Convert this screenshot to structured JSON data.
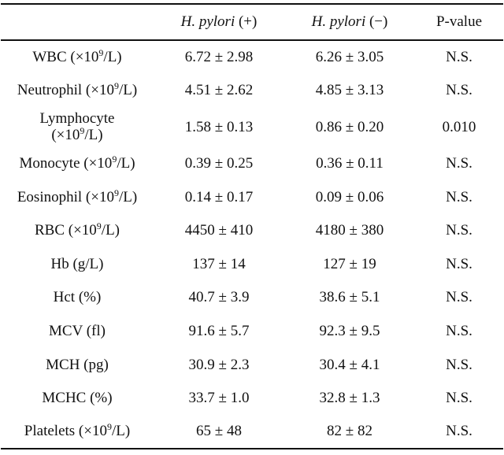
{
  "header": {
    "param": "",
    "pos_italic": "H. pylori",
    "pos_suffix": " (+)",
    "neg_italic": "H. pylori",
    "neg_suffix": " (−)",
    "pvalue": "P-value"
  },
  "rows": [
    {
      "label_pre": "WBC (×10",
      "sup": "9",
      "label_post": "/L)",
      "pos": "6.72 ± 2.98",
      "neg": "6.26 ± 3.05",
      "p": "N.S."
    },
    {
      "label_pre": "Neutrophil (×10",
      "sup": "9",
      "label_post": "/L)",
      "pos": "4.51 ± 2.62",
      "neg": "4.85 ± 3.13",
      "p": "N.S."
    },
    {
      "label_line1": "Lymphocyte",
      "label_pre": "(×10",
      "sup": "9",
      "label_post": "/L)",
      "pos": "1.58 ± 0.13",
      "neg": "0.86 ± 0.20",
      "p": "0.010"
    },
    {
      "label_pre": "Monocyte (×10",
      "sup": "9",
      "label_post": "/L)",
      "pos": "0.39 ± 0.25",
      "neg": "0.36 ± 0.11",
      "p": "N.S."
    },
    {
      "label_pre": "Eosinophil (×10",
      "sup": "9",
      "label_post": "/L)",
      "pos": "0.14 ± 0.17",
      "neg": "0.09 ± 0.06",
      "p": "N.S."
    },
    {
      "label_pre": "RBC (×10",
      "sup": "9",
      "label_post": "/L)",
      "pos": "4450 ± 410",
      "neg": "4180 ± 380",
      "p": "N.S."
    },
    {
      "label": "Hb (g/L)",
      "pos": "137 ± 14",
      "neg": "127 ± 19",
      "p": "N.S."
    },
    {
      "label": "Hct (%)",
      "pos": "40.7 ± 3.9",
      "neg": "38.6 ± 5.1",
      "p": "N.S."
    },
    {
      "label": "MCV (fl)",
      "pos": "91.6 ± 5.7",
      "neg": "92.3 ± 9.5",
      "p": "N.S."
    },
    {
      "label": "MCH (pg)",
      "pos": "30.9 ± 2.3",
      "neg": "30.4 ± 4.1",
      "p": "N.S."
    },
    {
      "label": "MCHC (%)",
      "pos": "33.7 ± 1.0",
      "neg": "32.8 ± 1.3",
      "p": "N.S."
    },
    {
      "label_pre": "Platelets (×10",
      "sup": "9",
      "label_post": "/L)",
      "pos": "65 ± 48",
      "neg": "82 ± 82",
      "p": "N.S."
    }
  ]
}
